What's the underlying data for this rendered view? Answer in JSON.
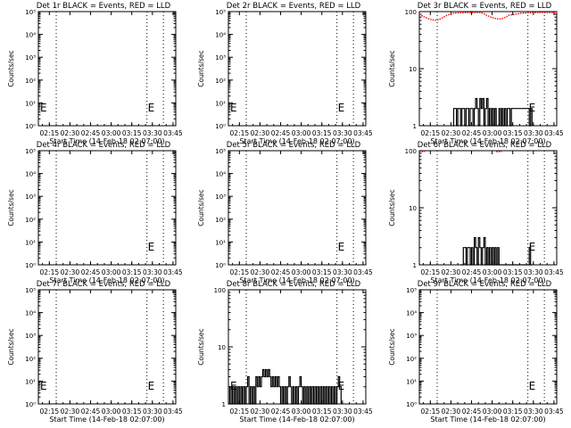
{
  "xlabel": "Start Time (14-Feb-18 02:07:00)",
  "ylabel": "Counts/sec",
  "x_tick_labels": [
    "02:15",
    "02:30",
    "02:45",
    "03:00",
    "03:15",
    "03:30",
    "03:45"
  ],
  "x_tick_values_min": [
    8,
    23,
    38,
    53,
    68,
    83,
    98
  ],
  "xlim_min": [
    0,
    100
  ],
  "marker_label": "E",
  "colors": {
    "events": "#000000",
    "lld": "#ff0000",
    "axis": "#000000"
  },
  "chart_data": [
    {
      "type": "line",
      "scale": "log",
      "title": "Det 1r BLACK = Events, RED = LLD",
      "ylim": [
        1,
        100000
      ],
      "y_tick_labels": [
        "10⁰",
        "10¹",
        "10²",
        "10³",
        "10⁴",
        "10⁵"
      ],
      "y_tick_values": [
        1,
        10,
        100,
        1000,
        10000,
        100000
      ],
      "vlines_min": [
        13,
        79,
        91
      ],
      "e_markers_min": [
        0,
        79
      ],
      "series": []
    },
    {
      "type": "line",
      "scale": "log",
      "title": "Det 2r BLACK = Events, RED = LLD",
      "ylim": [
        1,
        100000
      ],
      "y_tick_labels": [
        "10⁰",
        "10¹",
        "10²",
        "10³",
        "10⁴",
        "10⁵"
      ],
      "y_tick_values": [
        1,
        10,
        100,
        1000,
        10000,
        100000
      ],
      "vlines_min": [
        13,
        79,
        91
      ],
      "e_markers_min": [
        0,
        79
      ],
      "series": []
    },
    {
      "type": "line",
      "scale": "log",
      "title": "Det 3r BLACK = Events, RED = LLD",
      "ylim": [
        1,
        100
      ],
      "y_tick_labels": [
        "1",
        "10",
        "100"
      ],
      "y_tick_values": [
        1,
        10,
        100
      ],
      "vlines_min": [
        13,
        79,
        91
      ],
      "e_markers_min": [
        79
      ],
      "series": [
        {
          "role": "lld",
          "style": "dotted",
          "x": [
            0,
            3,
            6,
            9,
            11,
            14,
            17,
            20,
            25,
            35,
            45,
            47,
            49,
            52,
            55,
            58,
            61,
            63,
            65,
            75,
            85,
            90,
            95,
            100
          ],
          "y": [
            90,
            82,
            76,
            72,
            70,
            72,
            78,
            86,
            94,
            96,
            96,
            92,
            86,
            80,
            76,
            74,
            76,
            80,
            86,
            94,
            96,
            96,
            96,
            96
          ]
        },
        {
          "role": "events",
          "style": "step",
          "x": [
            24,
            25,
            27,
            28,
            30,
            31,
            33,
            34,
            36,
            37,
            39,
            40,
            41,
            42,
            43,
            44,
            45,
            46,
            47,
            48,
            49,
            50,
            51,
            52,
            53,
            54,
            55,
            56,
            58,
            59,
            60,
            61,
            62,
            63,
            64,
            66,
            67,
            80,
            81,
            82
          ],
          "y": [
            1,
            2,
            1,
            2,
            1,
            2,
            1,
            2,
            1,
            2,
            1,
            2,
            3,
            2,
            1,
            3,
            2,
            3,
            1,
            2,
            3,
            1,
            2,
            1,
            2,
            1,
            2,
            1,
            2,
            1,
            2,
            1,
            2,
            1,
            2,
            1,
            2,
            1,
            2,
            1
          ]
        }
      ]
    },
    {
      "type": "line",
      "scale": "log",
      "title": "Det 4r BLACK = Events, RED = LLD",
      "ylim": [
        1,
        100000
      ],
      "y_tick_labels": [
        "10⁰",
        "10¹",
        "10²",
        "10³",
        "10⁴",
        "10⁵"
      ],
      "y_tick_values": [
        1,
        10,
        100,
        1000,
        10000,
        100000
      ],
      "vlines_min": [
        13,
        79,
        91
      ],
      "e_markers_min": [
        79
      ],
      "series": []
    },
    {
      "type": "line",
      "scale": "log",
      "title": "Det 5r BLACK = Events, RED = LLD",
      "ylim": [
        1,
        100000
      ],
      "y_tick_labels": [
        "10⁰",
        "10¹",
        "10²",
        "10³",
        "10⁴",
        "10⁵"
      ],
      "y_tick_values": [
        1,
        10,
        100,
        1000,
        10000,
        100000
      ],
      "vlines_min": [
        13,
        79,
        91
      ],
      "e_markers_min": [
        79
      ],
      "series": []
    },
    {
      "type": "line",
      "scale": "log",
      "title": "Det 6r BLACK = Events, RED = LLD",
      "ylim": [
        1,
        100
      ],
      "y_tick_labels": [
        "1",
        "10",
        "100"
      ],
      "y_tick_values": [
        1,
        10,
        100
      ],
      "vlines_min": [
        13,
        79,
        91
      ],
      "e_markers_min": [
        79
      ],
      "series": [
        {
          "role": "lld",
          "style": "dotted",
          "x": [
            0,
            2,
            4
          ],
          "y": [
            96,
            96,
            96
          ]
        },
        {
          "role": "lld",
          "style": "dotted",
          "x": [
            56,
            58,
            60
          ],
          "y": [
            96,
            96,
            96
          ]
        },
        {
          "role": "events",
          "style": "step",
          "x": [
            30,
            32,
            34,
            35,
            37,
            38,
            39,
            40,
            41,
            42,
            43,
            44,
            45,
            46,
            47,
            48,
            49,
            50,
            51,
            52,
            53,
            54,
            55,
            56,
            57,
            58,
            80,
            81,
            82
          ],
          "y": [
            1,
            2,
            1,
            2,
            1,
            2,
            1,
            3,
            2,
            1,
            3,
            2,
            1,
            2,
            3,
            1,
            2,
            1,
            2,
            1,
            2,
            1,
            2,
            1,
            2,
            1,
            2,
            1,
            1
          ]
        }
      ]
    },
    {
      "type": "line",
      "scale": "log",
      "title": "Det 7r BLACK = Events, RED = LLD",
      "ylim": [
        1,
        100000
      ],
      "y_tick_labels": [
        "10⁰",
        "10¹",
        "10²",
        "10³",
        "10⁴",
        "10⁵"
      ],
      "y_tick_values": [
        1,
        10,
        100,
        1000,
        10000,
        100000
      ],
      "vlines_min": [
        13,
        79,
        91
      ],
      "e_markers_min": [
        0,
        79
      ],
      "series": []
    },
    {
      "type": "line",
      "scale": "log",
      "title": "Det 8r BLACK = Events, RED = LLD",
      "ylim": [
        1,
        100
      ],
      "y_tick_labels": [
        "1",
        "10",
        "100"
      ],
      "y_tick_values": [
        1,
        10,
        100
      ],
      "vlines_min": [
        13,
        79,
        91
      ],
      "e_markers_min": [
        0,
        79
      ],
      "series": [
        {
          "role": "events",
          "style": "step",
          "x": [
            0,
            1,
            2,
            3,
            4,
            5,
            6,
            7,
            8,
            9,
            10,
            11,
            12,
            13,
            14,
            15,
            16,
            17,
            18,
            19,
            20,
            21,
            22,
            23,
            24,
            25,
            26,
            27,
            28,
            29,
            30,
            31,
            32,
            33,
            34,
            35,
            36,
            37,
            38,
            39,
            40,
            41,
            42,
            43,
            44,
            45,
            46,
            47,
            48,
            49,
            50,
            51,
            52,
            53,
            54,
            55,
            56,
            57,
            58,
            59,
            60,
            61,
            62,
            63,
            64,
            65,
            66,
            67,
            68,
            69,
            70,
            71,
            72,
            73,
            74,
            75,
            76,
            77,
            78,
            79,
            80,
            81,
            82
          ],
          "y": [
            1,
            2,
            1,
            2,
            1,
            2,
            1,
            2,
            1,
            2,
            1,
            2,
            1,
            2,
            3,
            1,
            2,
            1,
            2,
            1,
            3,
            2,
            3,
            2,
            3,
            4,
            3,
            4,
            3,
            4,
            3,
            2,
            3,
            2,
            3,
            2,
            3,
            2,
            1,
            2,
            1,
            2,
            1,
            2,
            3,
            2,
            1,
            2,
            1,
            2,
            1,
            2,
            3,
            2,
            1,
            2,
            1,
            2,
            1,
            2,
            1,
            2,
            1,
            2,
            1,
            2,
            1,
            2,
            1,
            2,
            1,
            2,
            1,
            2,
            1,
            2,
            1,
            2,
            1,
            2,
            3,
            2,
            1
          ]
        }
      ]
    },
    {
      "type": "line",
      "scale": "log",
      "title": "Det 9r BLACK = Events, RED = LLD",
      "ylim": [
        1,
        100000
      ],
      "y_tick_labels": [
        "10⁰",
        "10¹",
        "10²",
        "10³",
        "10⁴",
        "10⁵"
      ],
      "y_tick_values": [
        1,
        10,
        100,
        1000,
        10000,
        100000
      ],
      "vlines_min": [
        13,
        79,
        91
      ],
      "e_markers_min": [
        79
      ],
      "series": []
    }
  ]
}
